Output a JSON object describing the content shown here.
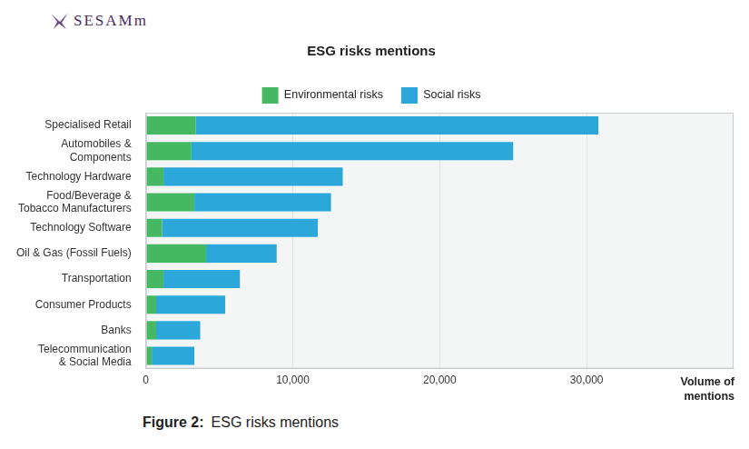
{
  "header": {
    "logo": "SESAMm"
  },
  "chart_data": {
    "type": "bar",
    "orientation": "horizontal",
    "stacked": true,
    "grid": true,
    "legend": "top",
    "title": "ESG risks mentions",
    "xlabel": "Volume of mentions",
    "categories": [
      "Specialised Retail",
      [
        "Automobiles &",
        "Components"
      ],
      "Technology Hardware",
      [
        "Food/Beverage &",
        "Tobacco Manufacturers"
      ],
      "Technology Software",
      "Oil & Gas (Fossil Fuels)",
      "Transportation",
      "Consumer Products",
      "Banks",
      [
        "Telecommunication",
        "& Social Media"
      ]
    ],
    "series": [
      {
        "name": "Environmental risks",
        "color": "#47b862",
        "values": [
          3400,
          3100,
          1200,
          3300,
          1100,
          4100,
          1200,
          700,
          700,
          400
        ]
      },
      {
        "name": "Social risks",
        "color": "#2ba7d9",
        "values": [
          27400,
          21900,
          12200,
          9300,
          10600,
          4800,
          5200,
          4700,
          3000,
          2900
        ]
      }
    ],
    "xlim": [
      0,
      40000
    ],
    "xticks": [
      0,
      {
        "value": 10000,
        "label": "10,000"
      },
      {
        "value": 20000,
        "label": "20,000"
      },
      {
        "value": 30000,
        "label": "30,000"
      }
    ]
  },
  "caption": {
    "label": "Figure 2:",
    "text": "ESG risks mentions"
  }
}
